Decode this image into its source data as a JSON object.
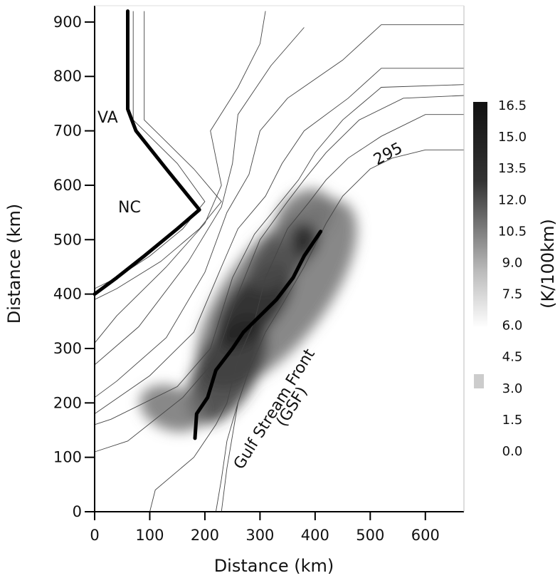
{
  "chart_data": {
    "type": "heatmap",
    "xlabel": "Distance (km)",
    "ylabel": "Distance (km)",
    "xlim": [
      0,
      670
    ],
    "ylim": [
      0,
      930
    ],
    "x_ticks": [
      0,
      100,
      200,
      300,
      400,
      500,
      600
    ],
    "y_ticks": [
      0,
      100,
      200,
      300,
      400,
      500,
      600,
      700,
      800,
      900
    ],
    "colorbar": {
      "label": "(K/100km)",
      "ticks": [
        "16.5",
        "15.0",
        "13.5",
        "12.0",
        "10.5",
        "9.0",
        "7.5",
        "6.0",
        "4.5",
        "3.0",
        "1.5",
        "0.0"
      ],
      "range": [
        0,
        16.5
      ]
    },
    "annotations": {
      "va": "VA",
      "nc": "NC",
      "contour_label": "295",
      "front_line1": "Gulf Stream Front",
      "front_line2": "(GSF)"
    },
    "coastline": [
      [
        60,
        920
      ],
      [
        60,
        740
      ],
      [
        75,
        700
      ],
      [
        130,
        630
      ],
      [
        190,
        555
      ],
      [
        150,
        520
      ],
      [
        90,
        470
      ],
      [
        40,
        430
      ],
      [
        0,
        400
      ]
    ],
    "gsf_front": [
      [
        182,
        135
      ],
      [
        185,
        180
      ],
      [
        205,
        210
      ],
      [
        220,
        260
      ],
      [
        250,
        300
      ],
      [
        270,
        330
      ],
      [
        300,
        360
      ],
      [
        330,
        390
      ],
      [
        360,
        430
      ],
      [
        380,
        470
      ],
      [
        400,
        500
      ],
      [
        410,
        515
      ]
    ],
    "contours": [
      [
        [
          70,
          920
        ],
        [
          70,
          720
        ],
        [
          90,
          700
        ],
        [
          150,
          640
        ],
        [
          200,
          570
        ],
        [
          160,
          520
        ],
        [
          100,
          470
        ],
        [
          40,
          430
        ],
        [
          0,
          410
        ]
      ],
      [
        [
          90,
          920
        ],
        [
          90,
          720
        ],
        [
          120,
          690
        ],
        [
          180,
          630
        ],
        [
          230,
          570
        ],
        [
          190,
          520
        ],
        [
          120,
          460
        ],
        [
          40,
          410
        ],
        [
          0,
          390
        ]
      ],
      [
        [
          310,
          920
        ],
        [
          300,
          860
        ],
        [
          260,
          780
        ],
        [
          210,
          700
        ],
        [
          230,
          600
        ],
        [
          200,
          530
        ],
        [
          130,
          450
        ],
        [
          40,
          360
        ],
        [
          0,
          310
        ]
      ],
      [
        [
          380,
          890
        ],
        [
          320,
          820
        ],
        [
          260,
          730
        ],
        [
          250,
          640
        ],
        [
          230,
          560
        ],
        [
          170,
          460
        ],
        [
          80,
          340
        ],
        [
          0,
          270
        ]
      ],
      [
        [
          670,
          895
        ],
        [
          520,
          895
        ],
        [
          450,
          830
        ],
        [
          350,
          760
        ],
        [
          300,
          700
        ],
        [
          280,
          620
        ],
        [
          240,
          550
        ],
        [
          200,
          440
        ],
        [
          130,
          320
        ],
        [
          40,
          240
        ],
        [
          0,
          210
        ]
      ],
      [
        [
          670,
          815
        ],
        [
          520,
          815
        ],
        [
          460,
          760
        ],
        [
          380,
          700
        ],
        [
          340,
          640
        ],
        [
          310,
          580
        ],
        [
          260,
          520
        ],
        [
          230,
          450
        ],
        [
          180,
          330
        ],
        [
          100,
          250
        ],
        [
          0,
          180
        ]
      ],
      [
        [
          670,
          785
        ],
        [
          520,
          780
        ],
        [
          450,
          720
        ],
        [
          400,
          660
        ],
        [
          370,
          610
        ],
        [
          330,
          560
        ],
        [
          290,
          510
        ],
        [
          250,
          430
        ],
        [
          210,
          300
        ],
        [
          150,
          230
        ],
        [
          30,
          170
        ],
        [
          0,
          160
        ]
      ],
      [
        [
          670,
          765
        ],
        [
          560,
          760
        ],
        [
          480,
          720
        ],
        [
          420,
          660
        ],
        [
          380,
          610
        ],
        [
          350,
          570
        ],
        [
          300,
          500
        ],
        [
          260,
          400
        ],
        [
          220,
          280
        ],
        [
          160,
          210
        ],
        [
          60,
          130
        ],
        [
          0,
          110
        ]
      ],
      [
        [
          670,
          730
        ],
        [
          600,
          730
        ],
        [
          520,
          690
        ],
        [
          460,
          650
        ],
        [
          420,
          610
        ],
        [
          390,
          570
        ],
        [
          350,
          520
        ],
        [
          310,
          430
        ],
        [
          290,
          350
        ],
        [
          260,
          280
        ],
        [
          240,
          200
        ],
        [
          220,
          160
        ],
        [
          180,
          100
        ],
        [
          110,
          40
        ],
        [
          100,
          0
        ]
      ],
      [
        [
          670,
          665
        ],
        [
          600,
          665
        ],
        [
          540,
          650
        ],
        [
          500,
          630
        ],
        [
          450,
          580
        ],
        [
          420,
          530
        ],
        [
          400,
          490
        ],
        [
          380,
          450
        ],
        [
          340,
          380
        ],
        [
          310,
          330
        ],
        [
          280,
          260
        ],
        [
          260,
          200
        ],
        [
          240,
          130
        ],
        [
          230,
          60
        ],
        [
          220,
          0
        ]
      ],
      [
        [
          260,
          200
        ],
        [
          250,
          140
        ],
        [
          240,
          80
        ],
        [
          230,
          0
        ]
      ]
    ],
    "gradient_blobs": [
      {
        "x": 330,
        "y": 400,
        "rx": 90,
        "ry": 210,
        "rot": 38,
        "value": 9
      },
      {
        "x": 240,
        "y": 260,
        "rx": 55,
        "ry": 110,
        "rot": 30,
        "value": 13.5
      },
      {
        "x": 290,
        "y": 380,
        "rx": 45,
        "ry": 95,
        "rot": 40,
        "value": 15
      },
      {
        "x": 340,
        "y": 470,
        "rx": 40,
        "ry": 80,
        "rot": 45,
        "value": 12
      },
      {
        "x": 380,
        "y": 540,
        "rx": 45,
        "ry": 60,
        "rot": 45,
        "value": 9
      },
      {
        "x": 140,
        "y": 190,
        "rx": 60,
        "ry": 40,
        "rot": 20,
        "value": 9
      },
      {
        "x": 380,
        "y": 500,
        "rx": 25,
        "ry": 30,
        "rot": 0,
        "value": 15
      }
    ]
  }
}
